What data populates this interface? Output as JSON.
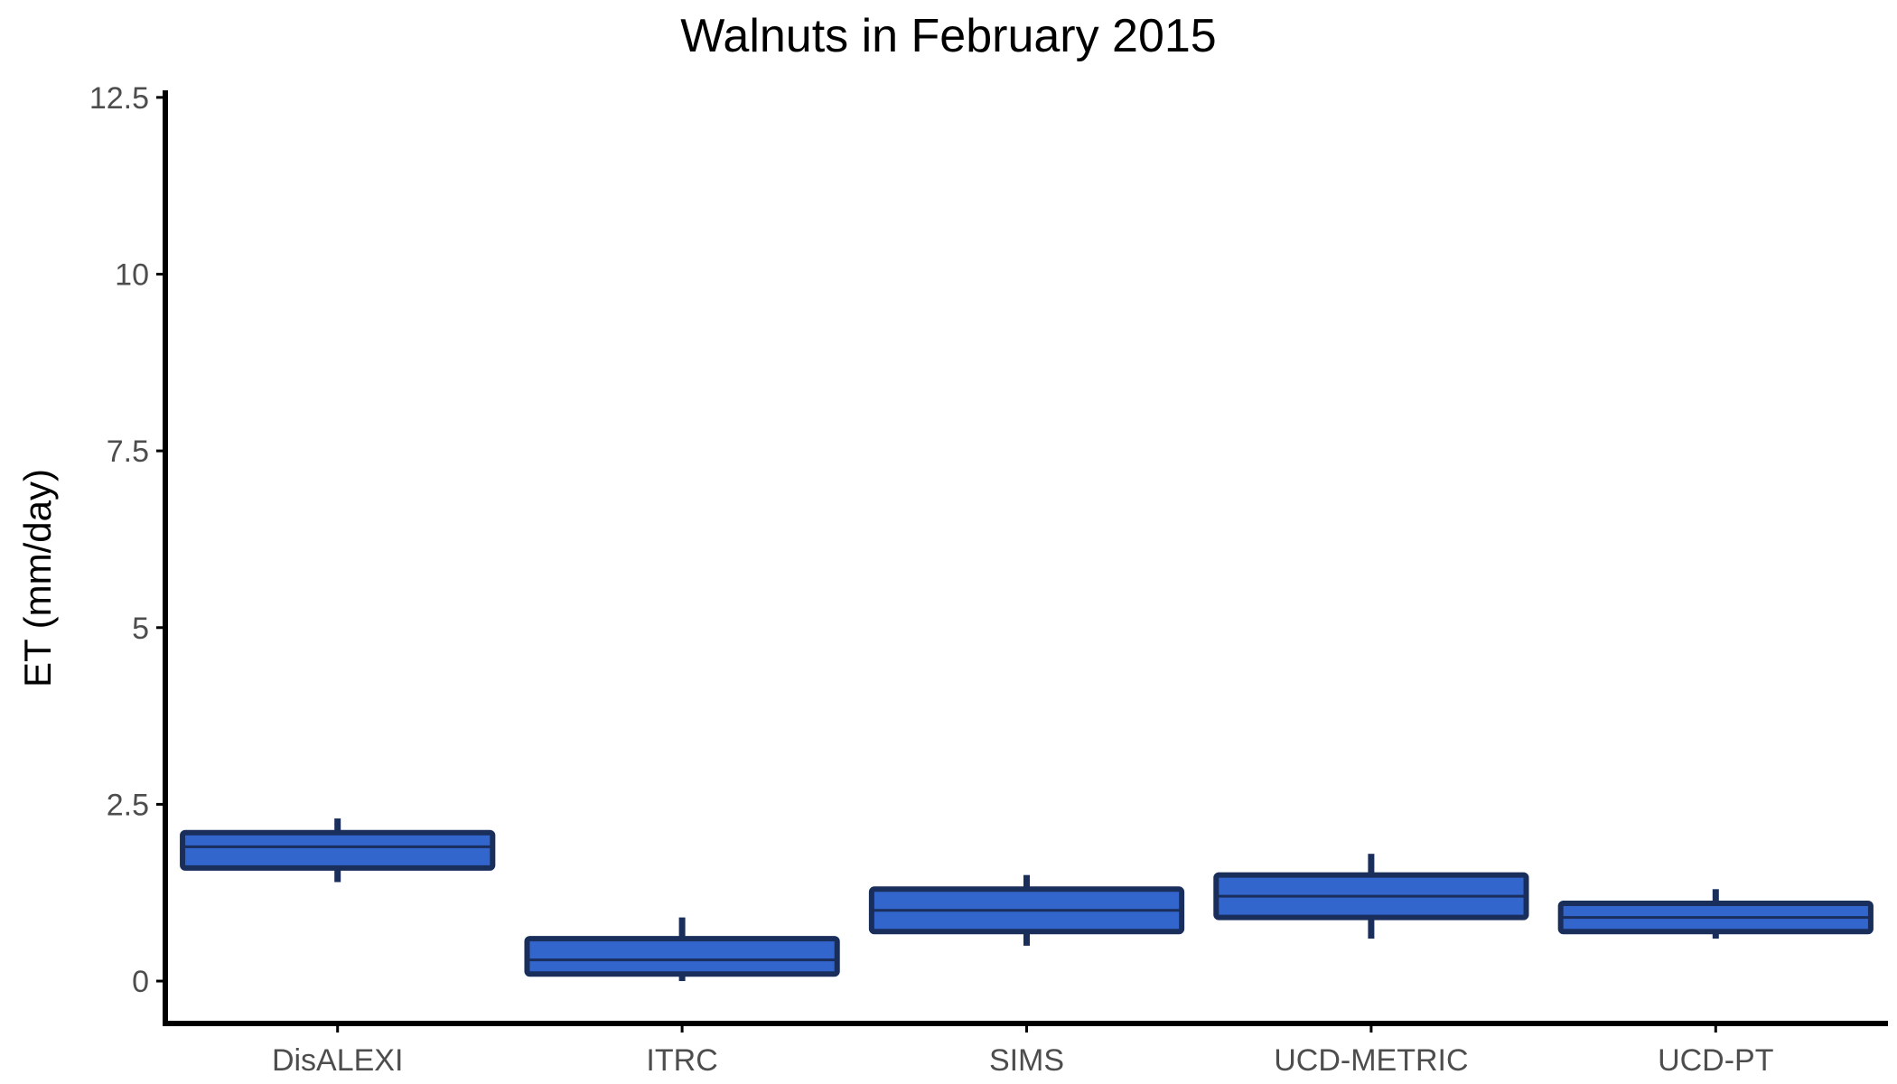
{
  "chart_data": {
    "type": "boxplot",
    "title": "Walnuts in February 2015",
    "xlabel": "",
    "ylabel": "ET (mm/day)",
    "ylim": [
      -0.6,
      12.6
    ],
    "yticks": [
      0,
      2.5,
      5,
      7.5,
      10,
      12.5
    ],
    "ytick_labels": [
      "0",
      "2.5",
      "5",
      "7.5",
      "10",
      "12.5"
    ],
    "categories": [
      "DisALEXI",
      "ITRC",
      "SIMS",
      "UCD-METRIC",
      "UCD-PT"
    ],
    "boxes": [
      {
        "category": "DisALEXI",
        "min": 1.4,
        "q1": 1.6,
        "median": 1.9,
        "q3": 2.1,
        "max": 2.3
      },
      {
        "category": "ITRC",
        "min": 0.0,
        "q1": 0.1,
        "median": 0.3,
        "q3": 0.6,
        "max": 0.9
      },
      {
        "category": "SIMS",
        "min": 0.5,
        "q1": 0.7,
        "median": 1.0,
        "q3": 1.3,
        "max": 1.5
      },
      {
        "category": "UCD-METRIC",
        "min": 0.6,
        "q1": 0.9,
        "median": 1.2,
        "q3": 1.5,
        "max": 1.8
      },
      {
        "category": "UCD-PT",
        "min": 0.6,
        "q1": 0.7,
        "median": 0.9,
        "q3": 1.1,
        "max": 1.3
      }
    ],
    "grid": false,
    "colors": {
      "fill": "#3366cc",
      "stroke": "#1a2e5c",
      "axis": "#000000",
      "tick_text": "#4d4d4d"
    }
  }
}
